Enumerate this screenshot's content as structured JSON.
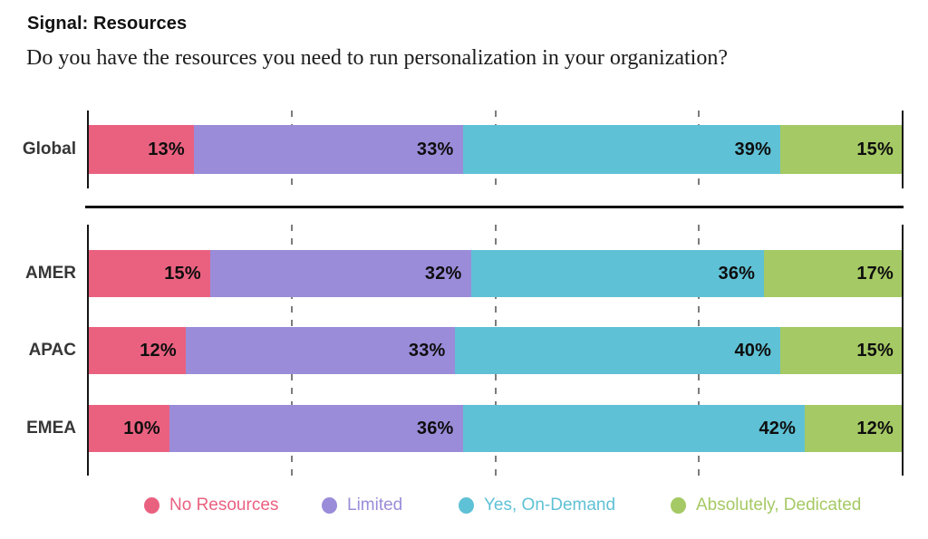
{
  "header": {
    "title": "Signal: Resources",
    "question": "Do you have the resources you need to run personalization in your organization?"
  },
  "chart_data": {
    "type": "bar",
    "subtype": "horizontal-stacked",
    "unit": "percent",
    "xlim": [
      0,
      100
    ],
    "gridlines_percent": [
      25,
      50,
      75
    ],
    "grid": "dashed-vertical",
    "legend_position": "bottom",
    "value_label_format": "{v}%",
    "series_names": [
      "No Resources",
      "Limited",
      "Yes, On-Demand",
      "Absolutely, Dedicated"
    ],
    "series_colors": [
      "#EA6180",
      "#9A8CD9",
      "#5FC1D5",
      "#A5C964"
    ],
    "sections": [
      {
        "name": "global",
        "rows": [
          {
            "label": "Global",
            "values": [
              13,
              33,
              39,
              15
            ]
          }
        ]
      },
      {
        "name": "regions",
        "rows": [
          {
            "label": "AMER",
            "values": [
              15,
              32,
              36,
              17
            ]
          },
          {
            "label": "APAC",
            "values": [
              12,
              33,
              40,
              15
            ]
          },
          {
            "label": "EMEA",
            "values": [
              10,
              36,
              42,
              12
            ]
          }
        ]
      }
    ]
  }
}
